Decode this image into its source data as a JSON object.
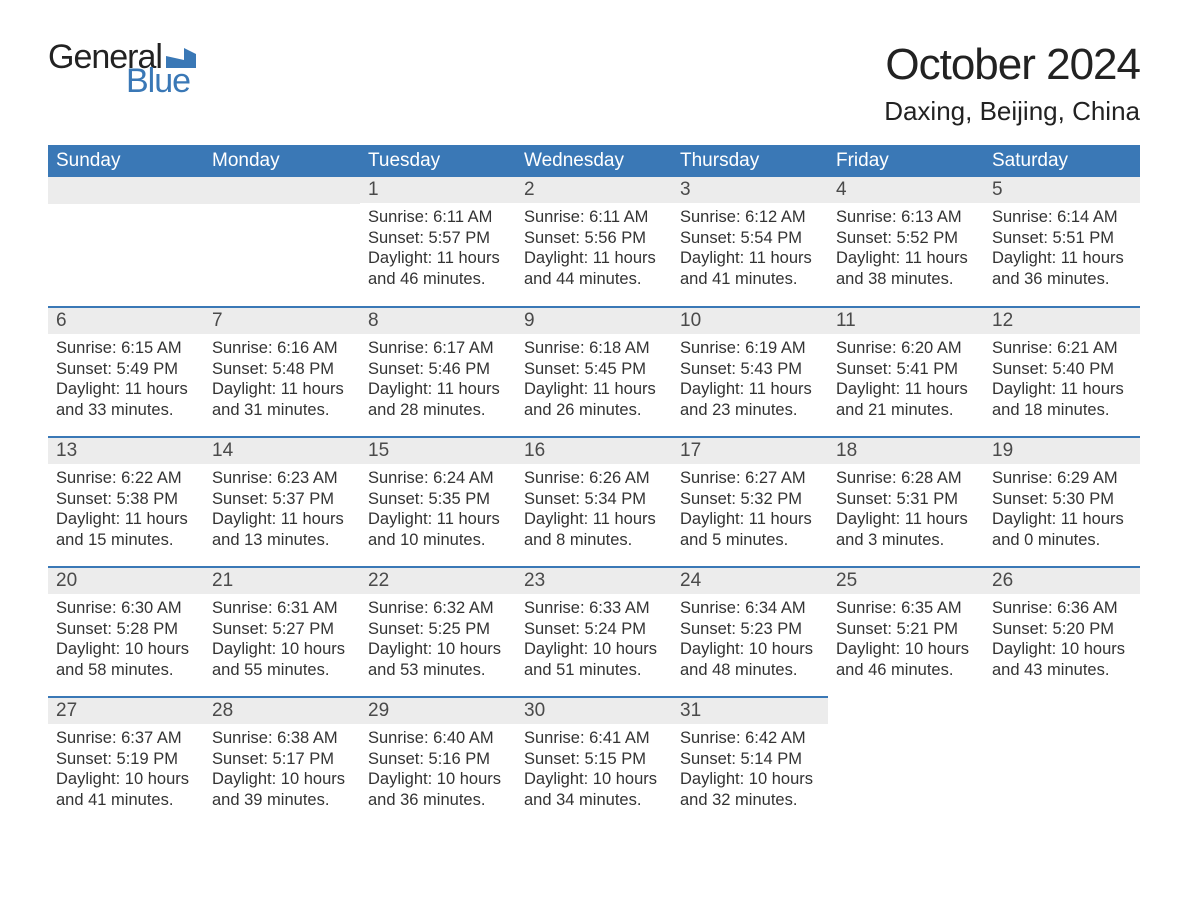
{
  "logo": {
    "general": "General",
    "blue": "Blue",
    "flag_color": "#3a78b6"
  },
  "title": "October 2024",
  "location": "Daxing, Beijing, China",
  "colors": {
    "header_bg": "#3a78b6",
    "header_text": "#ffffff",
    "daynum_bg": "#ececec",
    "daynum_text": "#4a4a4a",
    "body_text": "#333333",
    "row_border": "#3a78b6",
    "page_bg": "#ffffff"
  },
  "fonts": {
    "title_size_pt": 33,
    "location_size_pt": 20,
    "weekday_size_pt": 14,
    "daynum_size_pt": 14,
    "body_size_pt": 12
  },
  "weekdays": [
    "Sunday",
    "Monday",
    "Tuesday",
    "Wednesday",
    "Thursday",
    "Friday",
    "Saturday"
  ],
  "weeks": [
    [
      {
        "empty": true
      },
      {
        "empty": true
      },
      {
        "day": "1",
        "sunrise": "Sunrise: 6:11 AM",
        "sunset": "Sunset: 5:57 PM",
        "daylight1": "Daylight: 11 hours",
        "daylight2": "and 46 minutes."
      },
      {
        "day": "2",
        "sunrise": "Sunrise: 6:11 AM",
        "sunset": "Sunset: 5:56 PM",
        "daylight1": "Daylight: 11 hours",
        "daylight2": "and 44 minutes."
      },
      {
        "day": "3",
        "sunrise": "Sunrise: 6:12 AM",
        "sunset": "Sunset: 5:54 PM",
        "daylight1": "Daylight: 11 hours",
        "daylight2": "and 41 minutes."
      },
      {
        "day": "4",
        "sunrise": "Sunrise: 6:13 AM",
        "sunset": "Sunset: 5:52 PM",
        "daylight1": "Daylight: 11 hours",
        "daylight2": "and 38 minutes."
      },
      {
        "day": "5",
        "sunrise": "Sunrise: 6:14 AM",
        "sunset": "Sunset: 5:51 PM",
        "daylight1": "Daylight: 11 hours",
        "daylight2": "and 36 minutes."
      }
    ],
    [
      {
        "day": "6",
        "sunrise": "Sunrise: 6:15 AM",
        "sunset": "Sunset: 5:49 PM",
        "daylight1": "Daylight: 11 hours",
        "daylight2": "and 33 minutes."
      },
      {
        "day": "7",
        "sunrise": "Sunrise: 6:16 AM",
        "sunset": "Sunset: 5:48 PM",
        "daylight1": "Daylight: 11 hours",
        "daylight2": "and 31 minutes."
      },
      {
        "day": "8",
        "sunrise": "Sunrise: 6:17 AM",
        "sunset": "Sunset: 5:46 PM",
        "daylight1": "Daylight: 11 hours",
        "daylight2": "and 28 minutes."
      },
      {
        "day": "9",
        "sunrise": "Sunrise: 6:18 AM",
        "sunset": "Sunset: 5:45 PM",
        "daylight1": "Daylight: 11 hours",
        "daylight2": "and 26 minutes."
      },
      {
        "day": "10",
        "sunrise": "Sunrise: 6:19 AM",
        "sunset": "Sunset: 5:43 PM",
        "daylight1": "Daylight: 11 hours",
        "daylight2": "and 23 minutes."
      },
      {
        "day": "11",
        "sunrise": "Sunrise: 6:20 AM",
        "sunset": "Sunset: 5:41 PM",
        "daylight1": "Daylight: 11 hours",
        "daylight2": "and 21 minutes."
      },
      {
        "day": "12",
        "sunrise": "Sunrise: 6:21 AM",
        "sunset": "Sunset: 5:40 PM",
        "daylight1": "Daylight: 11 hours",
        "daylight2": "and 18 minutes."
      }
    ],
    [
      {
        "day": "13",
        "sunrise": "Sunrise: 6:22 AM",
        "sunset": "Sunset: 5:38 PM",
        "daylight1": "Daylight: 11 hours",
        "daylight2": "and 15 minutes."
      },
      {
        "day": "14",
        "sunrise": "Sunrise: 6:23 AM",
        "sunset": "Sunset: 5:37 PM",
        "daylight1": "Daylight: 11 hours",
        "daylight2": "and 13 minutes."
      },
      {
        "day": "15",
        "sunrise": "Sunrise: 6:24 AM",
        "sunset": "Sunset: 5:35 PM",
        "daylight1": "Daylight: 11 hours",
        "daylight2": "and 10 minutes."
      },
      {
        "day": "16",
        "sunrise": "Sunrise: 6:26 AM",
        "sunset": "Sunset: 5:34 PM",
        "daylight1": "Daylight: 11 hours",
        "daylight2": "and 8 minutes."
      },
      {
        "day": "17",
        "sunrise": "Sunrise: 6:27 AM",
        "sunset": "Sunset: 5:32 PM",
        "daylight1": "Daylight: 11 hours",
        "daylight2": "and 5 minutes."
      },
      {
        "day": "18",
        "sunrise": "Sunrise: 6:28 AM",
        "sunset": "Sunset: 5:31 PM",
        "daylight1": "Daylight: 11 hours",
        "daylight2": "and 3 minutes."
      },
      {
        "day": "19",
        "sunrise": "Sunrise: 6:29 AM",
        "sunset": "Sunset: 5:30 PM",
        "daylight1": "Daylight: 11 hours",
        "daylight2": "and 0 minutes."
      }
    ],
    [
      {
        "day": "20",
        "sunrise": "Sunrise: 6:30 AM",
        "sunset": "Sunset: 5:28 PM",
        "daylight1": "Daylight: 10 hours",
        "daylight2": "and 58 minutes."
      },
      {
        "day": "21",
        "sunrise": "Sunrise: 6:31 AM",
        "sunset": "Sunset: 5:27 PM",
        "daylight1": "Daylight: 10 hours",
        "daylight2": "and 55 minutes."
      },
      {
        "day": "22",
        "sunrise": "Sunrise: 6:32 AM",
        "sunset": "Sunset: 5:25 PM",
        "daylight1": "Daylight: 10 hours",
        "daylight2": "and 53 minutes."
      },
      {
        "day": "23",
        "sunrise": "Sunrise: 6:33 AM",
        "sunset": "Sunset: 5:24 PM",
        "daylight1": "Daylight: 10 hours",
        "daylight2": "and 51 minutes."
      },
      {
        "day": "24",
        "sunrise": "Sunrise: 6:34 AM",
        "sunset": "Sunset: 5:23 PM",
        "daylight1": "Daylight: 10 hours",
        "daylight2": "and 48 minutes."
      },
      {
        "day": "25",
        "sunrise": "Sunrise: 6:35 AM",
        "sunset": "Sunset: 5:21 PM",
        "daylight1": "Daylight: 10 hours",
        "daylight2": "and 46 minutes."
      },
      {
        "day": "26",
        "sunrise": "Sunrise: 6:36 AM",
        "sunset": "Sunset: 5:20 PM",
        "daylight1": "Daylight: 10 hours",
        "daylight2": "and 43 minutes."
      }
    ],
    [
      {
        "day": "27",
        "sunrise": "Sunrise: 6:37 AM",
        "sunset": "Sunset: 5:19 PM",
        "daylight1": "Daylight: 10 hours",
        "daylight2": "and 41 minutes."
      },
      {
        "day": "28",
        "sunrise": "Sunrise: 6:38 AM",
        "sunset": "Sunset: 5:17 PM",
        "daylight1": "Daylight: 10 hours",
        "daylight2": "and 39 minutes."
      },
      {
        "day": "29",
        "sunrise": "Sunrise: 6:40 AM",
        "sunset": "Sunset: 5:16 PM",
        "daylight1": "Daylight: 10 hours",
        "daylight2": "and 36 minutes."
      },
      {
        "day": "30",
        "sunrise": "Sunrise: 6:41 AM",
        "sunset": "Sunset: 5:15 PM",
        "daylight1": "Daylight: 10 hours",
        "daylight2": "and 34 minutes."
      },
      {
        "day": "31",
        "sunrise": "Sunrise: 6:42 AM",
        "sunset": "Sunset: 5:14 PM",
        "daylight1": "Daylight: 10 hours",
        "daylight2": "and 32 minutes."
      },
      {
        "empty": true
      },
      {
        "empty": true
      }
    ]
  ]
}
